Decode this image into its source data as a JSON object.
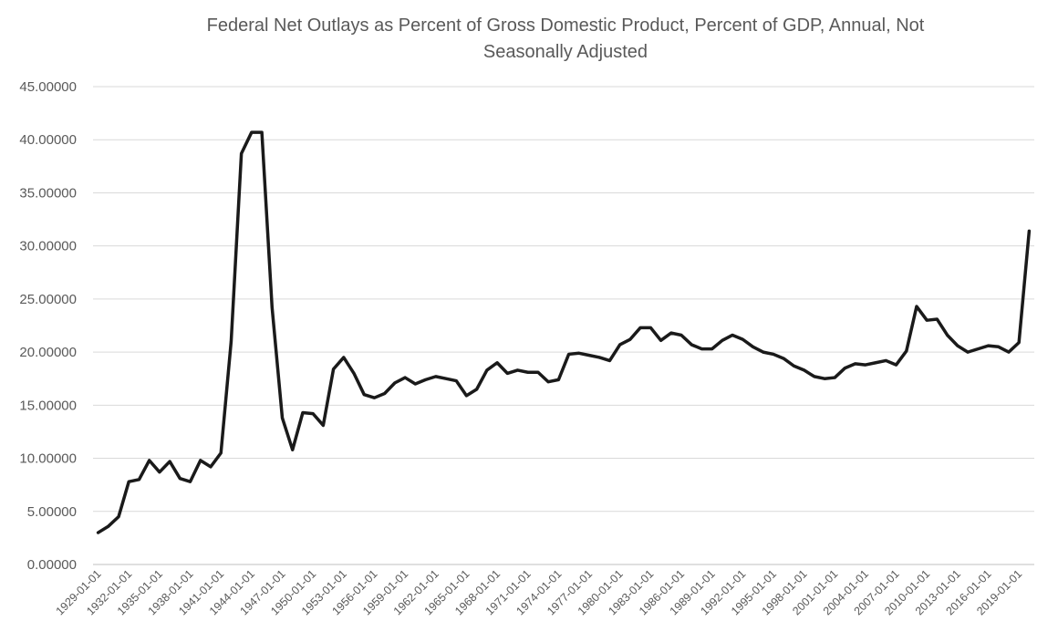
{
  "chart_data": {
    "type": "line",
    "title_line1": "Federal Net Outlays as Percent of Gross Domestic Product, Percent of GDP, Annual, Not",
    "title_line2": "Seasonally Adjusted",
    "xlabel": "",
    "ylabel": "",
    "ylim": [
      0,
      45
    ],
    "yticks": [
      "0.00000",
      "5.00000",
      "10.00000",
      "15.00000",
      "20.00000",
      "25.00000",
      "30.00000",
      "35.00000",
      "40.00000",
      "45.00000"
    ],
    "grid": true,
    "legend": "none",
    "line_color": "#1a1a1a",
    "x_tick_labels": [
      "1929-01-01",
      "1932-01-01",
      "1935-01-01",
      "1938-01-01",
      "1941-01-01",
      "1944-01-01",
      "1947-01-01",
      "1950-01-01",
      "1953-01-01",
      "1956-01-01",
      "1959-01-01",
      "1962-01-01",
      "1965-01-01",
      "1968-01-01",
      "1971-01-01",
      "1974-01-01",
      "1977-01-01",
      "1980-01-01",
      "1983-01-01",
      "1986-01-01",
      "1989-01-01",
      "1992-01-01",
      "1995-01-01",
      "1998-01-01",
      "2001-01-01",
      "2004-01-01",
      "2007-01-01",
      "2010-01-01",
      "2013-01-01",
      "2016-01-01",
      "2019-01-01"
    ],
    "series": [
      {
        "x": [
          "1929-01-01",
          "1930-01-01",
          "1931-01-01",
          "1932-01-01",
          "1933-01-01",
          "1934-01-01",
          "1935-01-01",
          "1936-01-01",
          "1937-01-01",
          "1938-01-01",
          "1939-01-01",
          "1940-01-01",
          "1941-01-01",
          "1942-01-01",
          "1943-01-01",
          "1944-01-01",
          "1945-01-01",
          "1946-01-01",
          "1947-01-01",
          "1948-01-01",
          "1949-01-01",
          "1950-01-01",
          "1951-01-01",
          "1952-01-01",
          "1953-01-01",
          "1954-01-01",
          "1955-01-01",
          "1956-01-01",
          "1957-01-01",
          "1958-01-01",
          "1959-01-01",
          "1960-01-01",
          "1961-01-01",
          "1962-01-01",
          "1963-01-01",
          "1964-01-01",
          "1965-01-01",
          "1966-01-01",
          "1967-01-01",
          "1968-01-01",
          "1969-01-01",
          "1970-01-01",
          "1971-01-01",
          "1972-01-01",
          "1973-01-01",
          "1974-01-01",
          "1975-01-01",
          "1976-01-01",
          "1977-01-01",
          "1978-01-01",
          "1979-01-01",
          "1980-01-01",
          "1981-01-01",
          "1982-01-01",
          "1983-01-01",
          "1984-01-01",
          "1985-01-01",
          "1986-01-01",
          "1987-01-01",
          "1988-01-01",
          "1989-01-01",
          "1990-01-01",
          "1991-01-01",
          "1992-01-01",
          "1993-01-01",
          "1994-01-01",
          "1995-01-01",
          "1996-01-01",
          "1997-01-01",
          "1998-01-01",
          "1999-01-01",
          "2000-01-01",
          "2001-01-01",
          "2002-01-01",
          "2003-01-01",
          "2004-01-01",
          "2005-01-01",
          "2006-01-01",
          "2007-01-01",
          "2008-01-01",
          "2009-01-01",
          "2010-01-01",
          "2011-01-01",
          "2012-01-01",
          "2013-01-01",
          "2014-01-01",
          "2015-01-01",
          "2016-01-01",
          "2017-01-01",
          "2018-01-01",
          "2019-01-01",
          "2020-01-01"
        ],
        "values": [
          3.0,
          3.6,
          4.5,
          7.8,
          8.0,
          9.8,
          8.7,
          9.7,
          8.1,
          7.8,
          9.8,
          9.2,
          10.5,
          21.0,
          38.7,
          40.7,
          40.7,
          24.2,
          13.8,
          10.8,
          14.3,
          14.2,
          13.1,
          18.4,
          19.5,
          18.0,
          16.0,
          15.7,
          16.1,
          17.1,
          17.6,
          17.0,
          17.4,
          17.7,
          17.5,
          17.3,
          15.9,
          16.5,
          18.3,
          19.0,
          18.0,
          18.3,
          18.1,
          18.1,
          17.2,
          17.4,
          19.8,
          19.9,
          19.7,
          19.5,
          19.2,
          20.7,
          21.2,
          22.3,
          22.3,
          21.1,
          21.8,
          21.6,
          20.7,
          20.3,
          20.3,
          21.1,
          21.6,
          21.2,
          20.5,
          20.0,
          19.8,
          19.4,
          18.7,
          18.3,
          17.7,
          17.5,
          17.6,
          18.5,
          18.9,
          18.8,
          19.0,
          19.2,
          18.8,
          20.1,
          24.3,
          23.0,
          23.1,
          21.6,
          20.6,
          20.0,
          20.3,
          20.6,
          20.5,
          20.0,
          20.9,
          31.4
        ]
      }
    ]
  }
}
